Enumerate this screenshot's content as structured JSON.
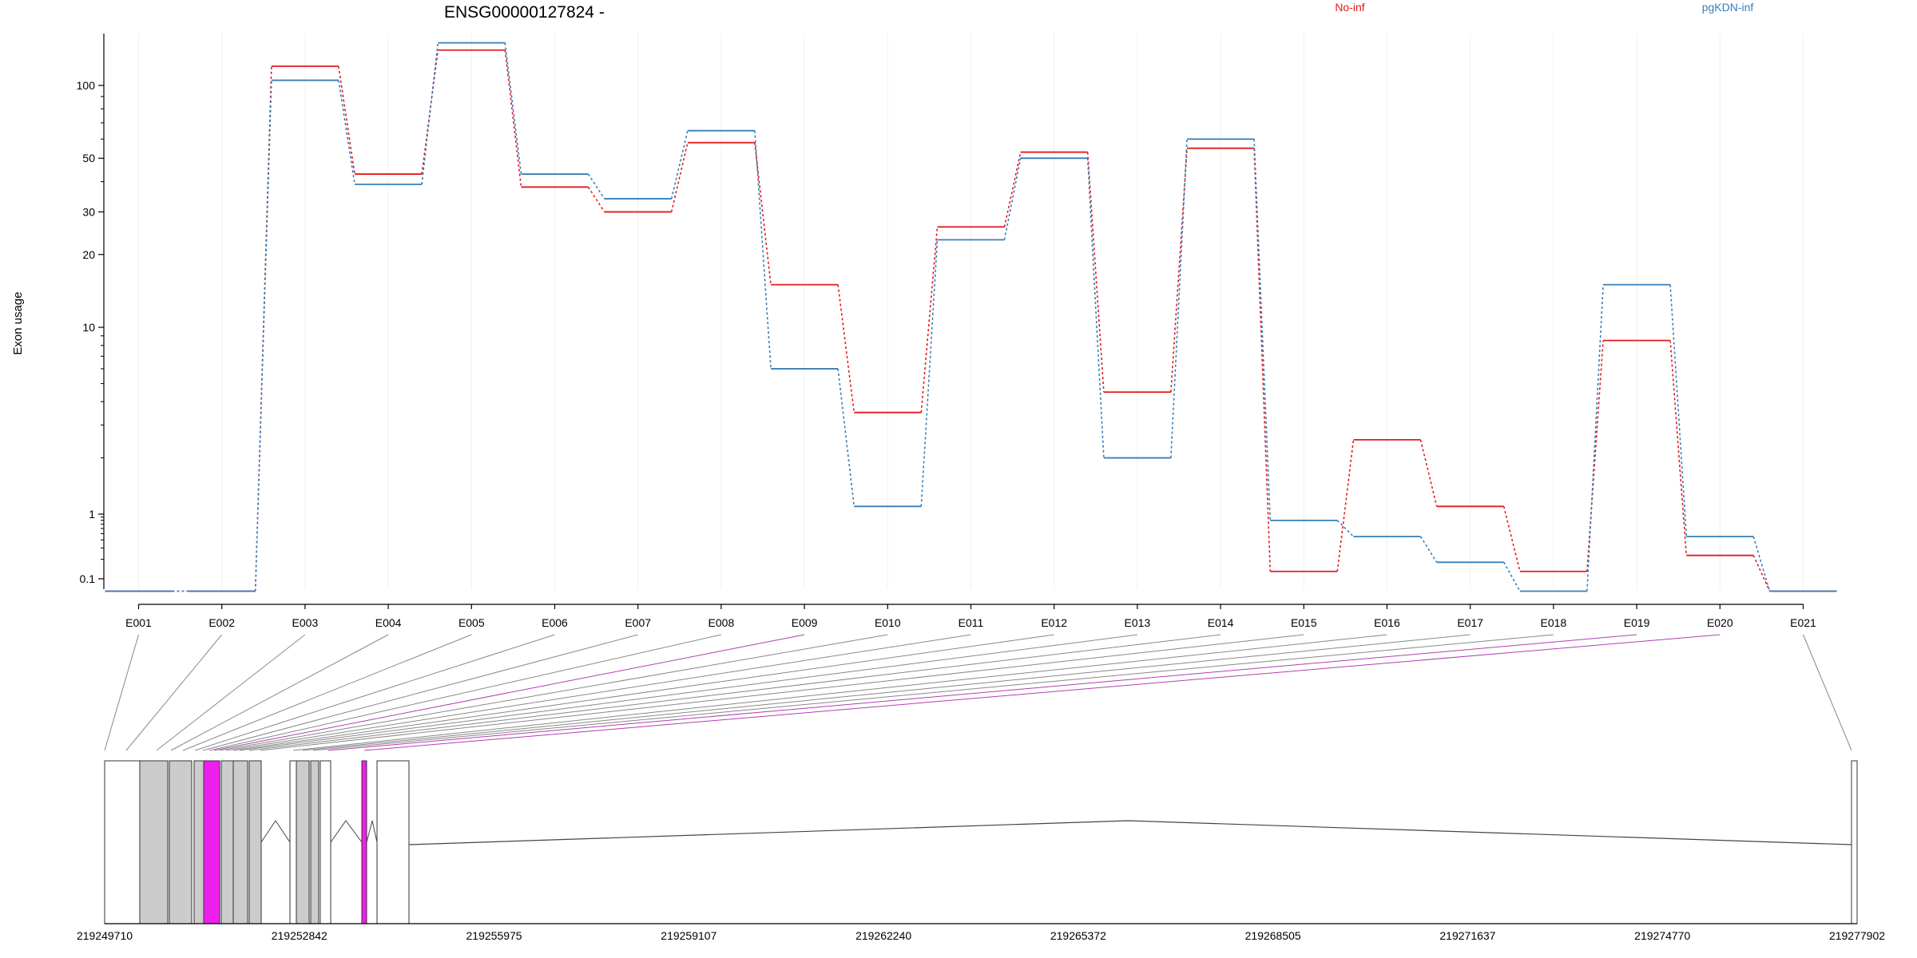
{
  "chart_data": {
    "type": "line",
    "title": "ENSG00000127824 -",
    "xlabel": "",
    "ylabel": "Exon usage",
    "yscale": "log",
    "grid": true,
    "legend_position": "top",
    "categories": [
      "E001",
      "E002",
      "E003",
      "E004",
      "E005",
      "E006",
      "E007",
      "E008",
      "E009",
      "E010",
      "E011",
      "E012",
      "E013",
      "E014",
      "E015",
      "E016",
      "E017",
      "E018",
      "E019",
      "E020",
      "E021"
    ],
    "y_ticks": [
      "0.1",
      "1",
      "10",
      "20",
      "30",
      "50",
      "100"
    ],
    "series": [
      {
        "name": "No-inf",
        "color": "#e41a1c",
        "values": [
          0.07,
          0.07,
          120,
          43,
          140,
          38,
          30,
          58,
          15,
          3.5,
          26,
          53,
          4.5,
          55,
          0.13,
          2.5,
          1.1,
          0.13,
          8.5,
          0.23,
          0.07
        ]
      },
      {
        "name": "pgKDN-inf",
        "color": "#377eb8",
        "values": [
          0.07,
          0.07,
          105,
          39,
          150,
          43,
          34,
          65,
          6,
          1.1,
          23,
          50,
          2,
          60,
          0.8,
          0.45,
          0.18,
          0.07,
          15,
          0.45,
          0.07
        ]
      }
    ],
    "gene_model": {
      "coordinate_labels": [
        "219249710",
        "219252842",
        "219255975",
        "219259107",
        "219262240",
        "219265372",
        "219268505",
        "219271637",
        "219274770",
        "219277902"
      ],
      "exon_highlight_color": "#ee1fee",
      "exon_shared_color": "#cccccc"
    }
  }
}
